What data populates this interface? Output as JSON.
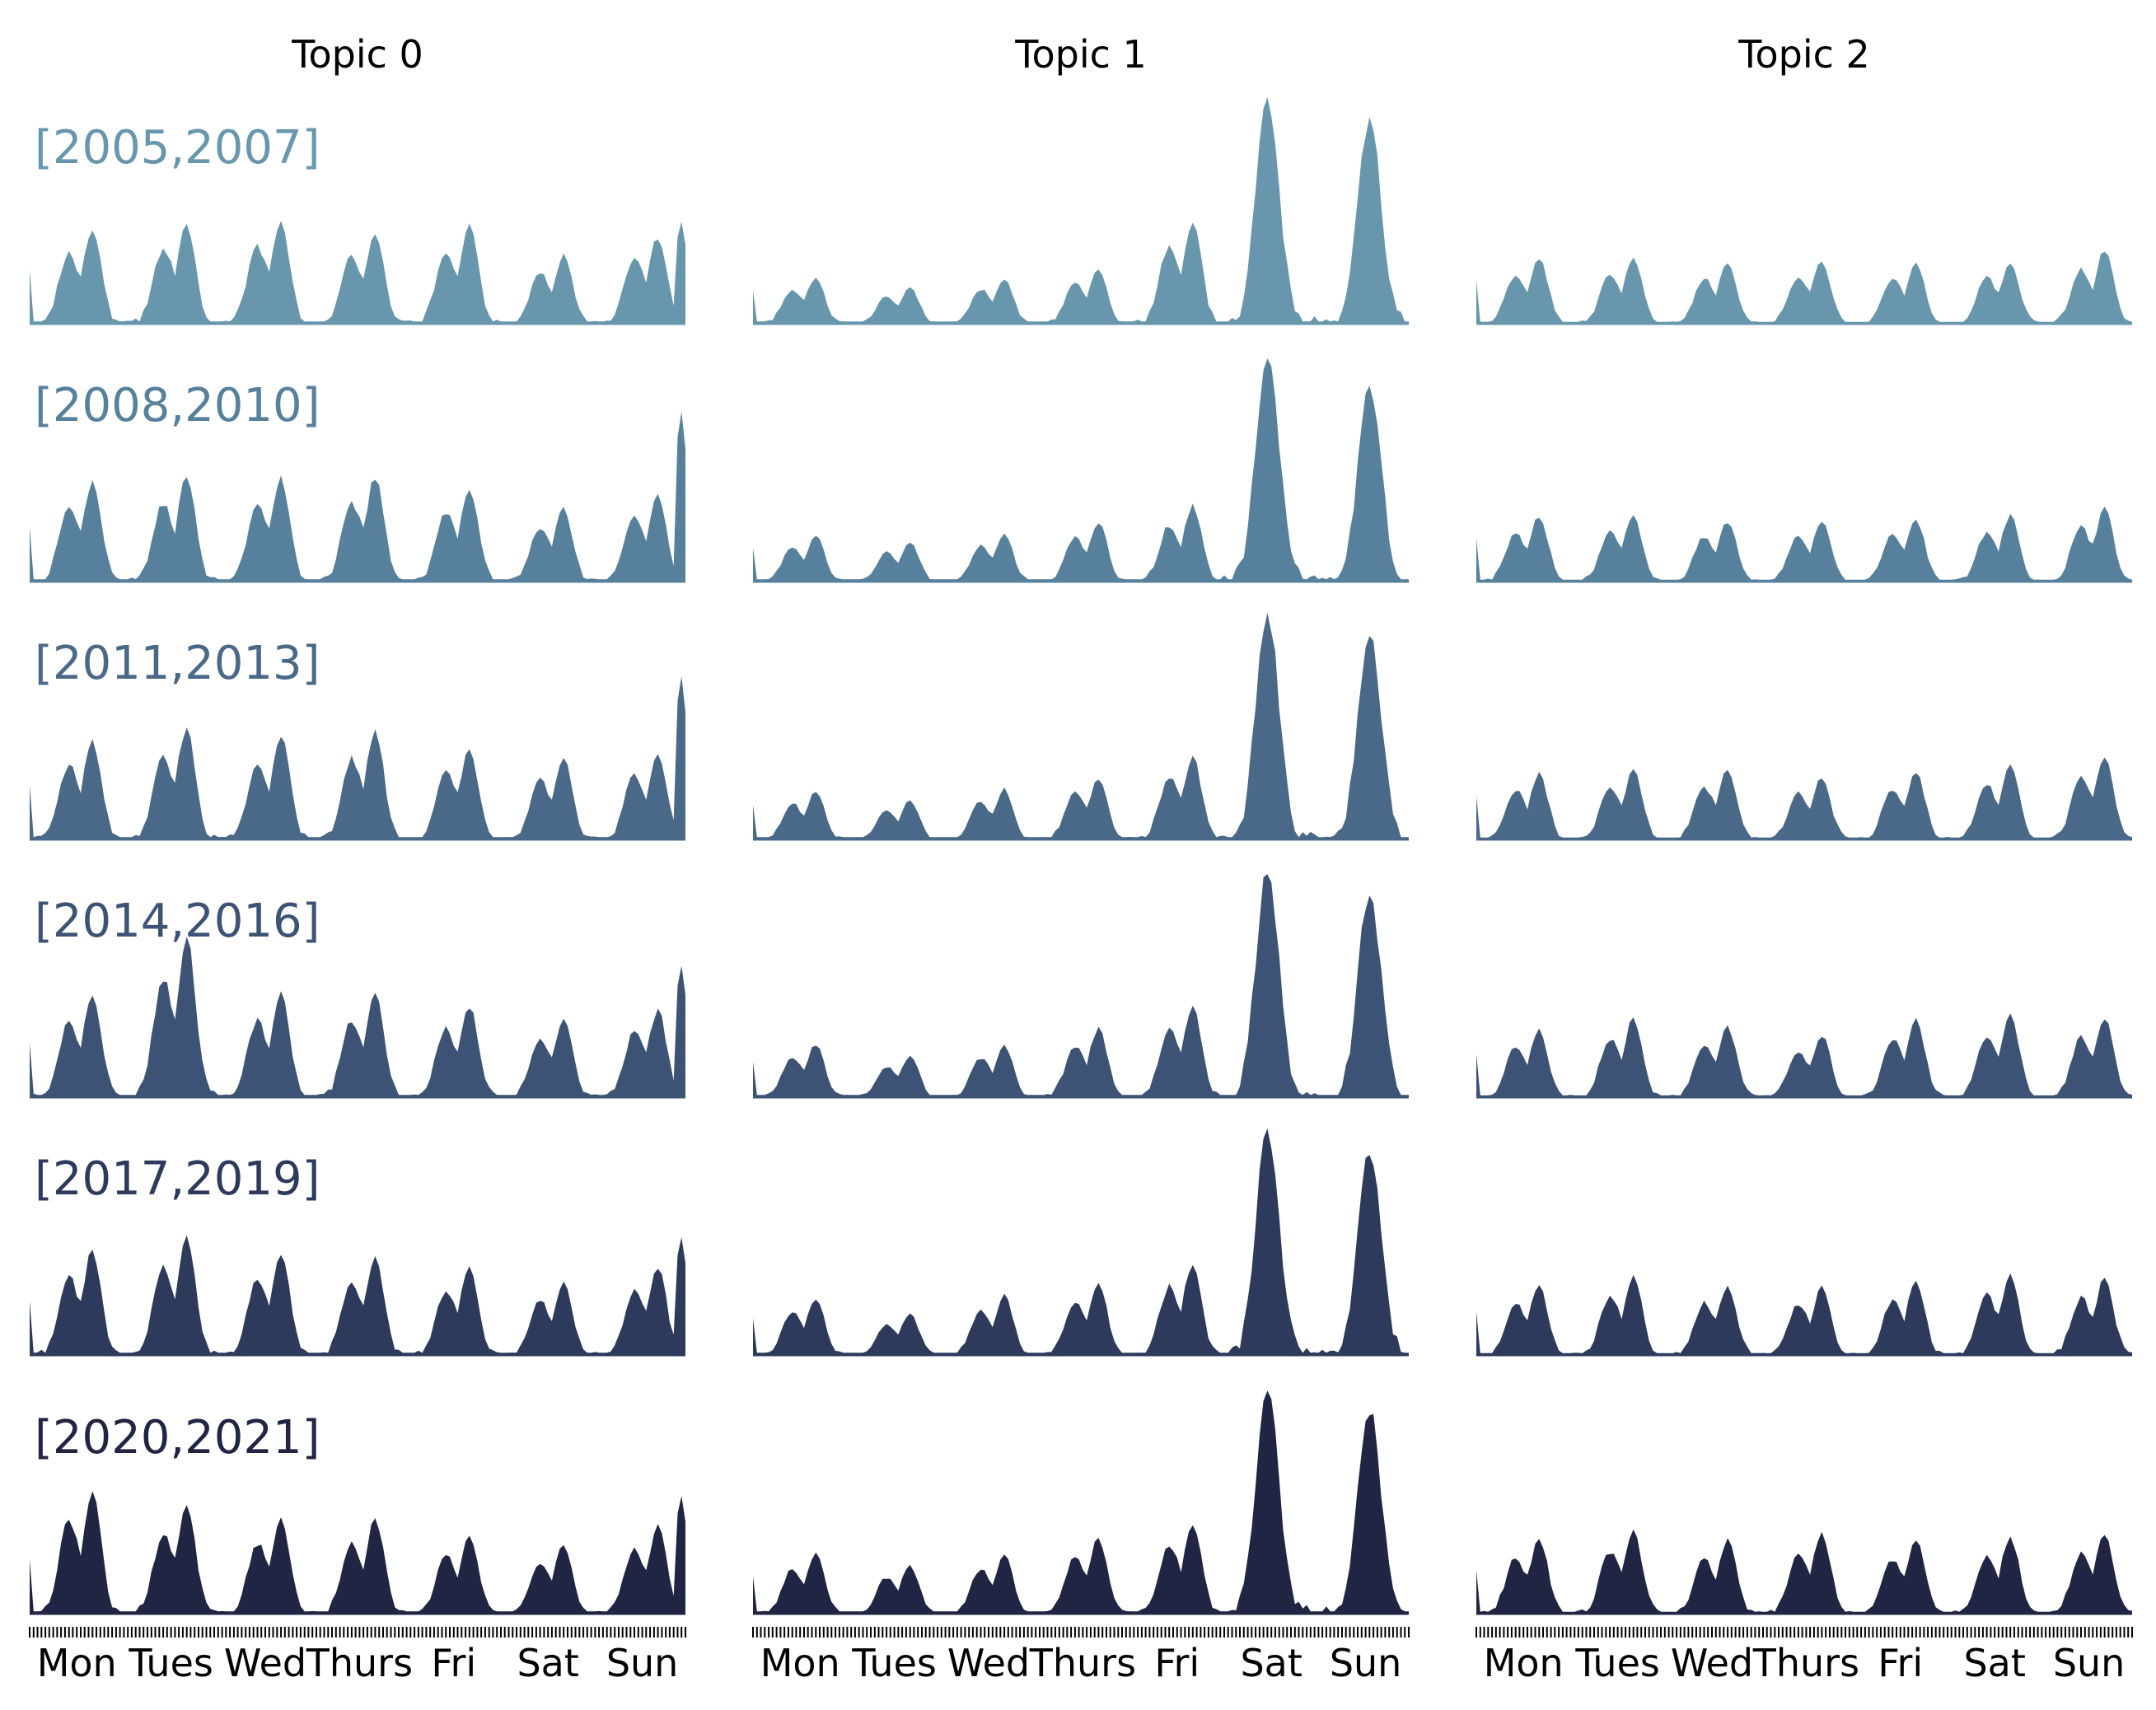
{
  "chart_data": {
    "type": "area",
    "description_units": "relative activity per hour of week (0-1), 168 hourly points Mon 00:00 to Sun 23:00",
    "x_tick_labels": [
      "Mon",
      "Tues",
      "Wed",
      "Thurs",
      "Fri",
      "Sat",
      "Sun"
    ],
    "hours_per_day": 24,
    "ylim": [
      0,
      1
    ],
    "grid": false,
    "legend": "none",
    "period_colors": [
      "#6796ad",
      "#56809c",
      "#4a6888",
      "#3d5375",
      "#2d3a5c",
      "#1f2542"
    ],
    "columns": [
      {
        "title": "Topic 0",
        "rows": [
          {
            "period": "[2005,2007]",
            "peaks": [
              0.42,
              0.44,
              0.45,
              0.4,
              0.43,
              0.3,
              0.38,
              0.45
            ],
            "scale": 1.0
          },
          {
            "period": "[2008,2010]",
            "peaks": [
              0.43,
              0.46,
              0.45,
              0.46,
              0.4,
              0.32,
              0.38,
              0.75
            ],
            "scale": 1.0
          },
          {
            "period": "[2011,2013]",
            "peaks": [
              0.43,
              0.49,
              0.45,
              0.47,
              0.4,
              0.35,
              0.38,
              0.72
            ],
            "scale": 1.0
          },
          {
            "period": "[2014,2016]",
            "peaks": [
              0.44,
              0.7,
              0.45,
              0.45,
              0.4,
              0.34,
              0.38,
              0.58
            ],
            "scale": 1.0
          },
          {
            "period": "[2017,2019]",
            "peaks": [
              0.46,
              0.52,
              0.44,
              0.43,
              0.38,
              0.32,
              0.38,
              0.52
            ],
            "scale": 1.0
          },
          {
            "period": "[2020,2021]",
            "peaks": [
              0.54,
              0.47,
              0.41,
              0.42,
              0.34,
              0.3,
              0.38,
              0.52
            ],
            "scale": 1.0
          }
        ]
      },
      {
        "title": "Topic 1",
        "rows": [
          {
            "period": "[2005,2007]",
            "peaks": [
              0.2,
              0.16,
              0.2,
              0.24,
              0.45,
              1.0,
              0.9,
              0.1
            ],
            "scale": 1.0
          },
          {
            "period": "[2008,2010]",
            "peaks": [
              0.2,
              0.17,
              0.21,
              0.26,
              0.33,
              1.0,
              0.86,
              0.1
            ],
            "scale": 1.0
          },
          {
            "period": "[2011,2013]",
            "peaks": [
              0.21,
              0.17,
              0.22,
              0.27,
              0.36,
              1.0,
              0.9,
              0.1
            ],
            "scale": 1.0
          },
          {
            "period": "[2014,2016]",
            "peaks": [
              0.23,
              0.18,
              0.23,
              0.3,
              0.4,
              1.0,
              0.9,
              0.1
            ],
            "scale": 1.0
          },
          {
            "period": "[2017,2019]",
            "peaks": [
              0.25,
              0.18,
              0.26,
              0.31,
              0.4,
              1.0,
              0.9,
              0.1
            ],
            "scale": 1.0
          },
          {
            "period": "[2020,2021]",
            "peaks": [
              0.26,
              0.21,
              0.26,
              0.33,
              0.4,
              1.0,
              0.9,
              0.1
            ],
            "scale": 1.0
          }
        ]
      },
      {
        "title": "Topic 2",
        "rows": [
          {
            "period": "[2005,2007]",
            "peaks": [
              0.36,
              0.36,
              0.33,
              0.34,
              0.33,
              0.34,
              0.4,
              0.35
            ],
            "scale": 0.8
          },
          {
            "period": "[2008,2010]",
            "peaks": [
              0.36,
              0.36,
              0.33,
              0.33,
              0.34,
              0.36,
              0.4,
              0.35
            ],
            "scale": 0.8
          },
          {
            "period": "[2011,2013]",
            "peaks": [
              0.36,
              0.38,
              0.38,
              0.34,
              0.37,
              0.4,
              0.45,
              0.35
            ],
            "scale": 0.8
          },
          {
            "period": "[2014,2016]",
            "peaks": [
              0.37,
              0.43,
              0.38,
              0.34,
              0.42,
              0.45,
              0.44,
              0.35
            ],
            "scale": 0.8
          },
          {
            "period": "[2017,2019]",
            "peaks": [
              0.38,
              0.43,
              0.38,
              0.37,
              0.4,
              0.44,
              0.42,
              0.35
            ],
            "scale": 0.8
          },
          {
            "period": "[2020,2021]",
            "peaks": [
              0.41,
              0.45,
              0.4,
              0.44,
              0.4,
              0.42,
              0.44,
              0.35
            ],
            "scale": 0.8
          }
        ]
      }
    ]
  }
}
